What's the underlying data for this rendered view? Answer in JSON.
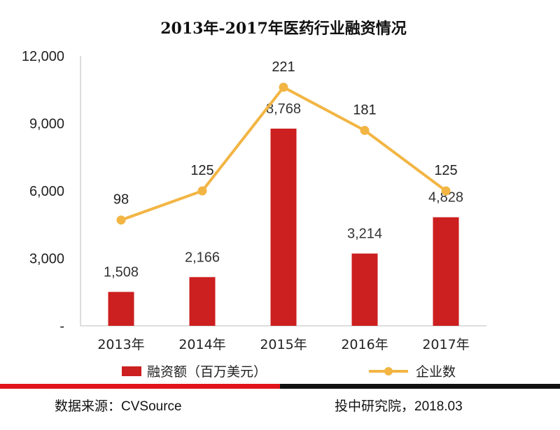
{
  "chart_data": {
    "type": "bar+line",
    "title": "2013年-2017年医药行业融资情况",
    "categories": [
      "2013年",
      "2014年",
      "2015年",
      "2016年",
      "2017年"
    ],
    "series": [
      {
        "name": "融资额（百万美元）",
        "type": "bar",
        "values": [
          1508,
          2166,
          8768,
          3214,
          4828
        ],
        "labels": [
          "1,508",
          "2,166",
          "8,768",
          "3,214",
          "4,828"
        ],
        "color": "#cc1f1f"
      },
      {
        "name": "企业数",
        "type": "line",
        "values": [
          98,
          125,
          221,
          181,
          125
        ],
        "labels": [
          "98",
          "125",
          "221",
          "181",
          "125"
        ],
        "color": "#f2b544"
      }
    ],
    "y_axis": {
      "min": 0,
      "max": 12000,
      "ticks": [
        0,
        3000,
        6000,
        9000,
        12000
      ],
      "tick_labels": [
        "-",
        "3,000",
        "6,000",
        "9,000",
        "12,000"
      ]
    },
    "line_axis": {
      "min": 0,
      "max": 250
    },
    "legend_position": "bottom"
  },
  "footer": {
    "source_label": "数据来源：",
    "source_value": "CVSource",
    "publisher_label": "投中研究院，",
    "publisher_date": "2018.03",
    "bar_colors": [
      "#e0141a",
      "#111111"
    ]
  }
}
